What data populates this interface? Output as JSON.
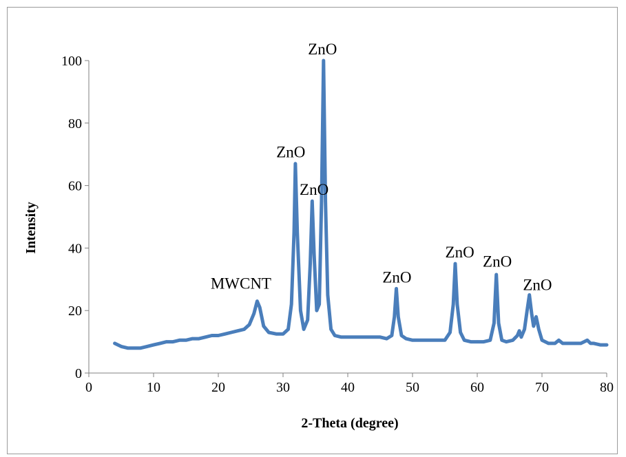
{
  "chart_data": {
    "type": "line",
    "title": "",
    "xlabel": "2-Theta (degree)",
    "ylabel": "Intensity",
    "xlim": [
      0,
      80
    ],
    "ylim": [
      0,
      100
    ],
    "xticks": [
      "0",
      "10",
      "20",
      "30",
      "40",
      "50",
      "60",
      "70",
      "80"
    ],
    "yticks": [
      "0",
      "20",
      "40",
      "60",
      "80",
      "100"
    ],
    "grid": false,
    "legend": "none",
    "series": [
      {
        "color": "#4a7ebb",
        "x": [
          4,
          5,
          6,
          7,
          8,
          9,
          10,
          11,
          12,
          13,
          14,
          15,
          16,
          17,
          18,
          19,
          20,
          21,
          22,
          23,
          24,
          24.8,
          25.5,
          26,
          26.4,
          27,
          27.8,
          29,
          30,
          30.8,
          31.3,
          31.7,
          31.9,
          32.2,
          32.7,
          33.2,
          33.8,
          34.2,
          34.5,
          34.8,
          35.2,
          35.6,
          35.95,
          36.25,
          36.55,
          36.9,
          37.4,
          38,
          39,
          40,
          41,
          42,
          43,
          44,
          45,
          46,
          46.8,
          47.2,
          47.5,
          47.8,
          48.3,
          49,
          50,
          51,
          52,
          53,
          54,
          55,
          55.8,
          56.3,
          56.6,
          56.9,
          57.4,
          58,
          59,
          60,
          61,
          62,
          62.6,
          62.95,
          63.3,
          63.8,
          64.5,
          65.5,
          66.2,
          66.5,
          66.8,
          67.3,
          67.7,
          68.05,
          68.4,
          68.7,
          69.1,
          69.5,
          70,
          71,
          72,
          72.6,
          73.2,
          74,
          75,
          76,
          76.5,
          77,
          77.5,
          78,
          79,
          80
        ],
        "y": [
          9.5,
          8.5,
          8,
          8,
          8,
          8.5,
          9,
          9.5,
          10,
          10,
          10.5,
          10.5,
          11,
          11,
          11.5,
          12,
          12,
          12.5,
          13,
          13.5,
          14,
          15.5,
          19,
          23,
          21,
          15,
          13,
          12.5,
          12.5,
          14,
          22,
          45,
          67,
          45,
          20,
          14,
          17,
          35,
          55,
          38,
          20,
          22,
          55,
          100,
          55,
          25,
          14,
          12,
          11.5,
          11.5,
          11.5,
          11.5,
          11.5,
          11.5,
          11.5,
          11,
          12,
          18,
          27,
          18,
          12,
          11,
          10.5,
          10.5,
          10.5,
          10.5,
          10.5,
          10.5,
          13,
          22,
          35,
          22,
          13,
          10.5,
          10,
          10,
          10,
          10.5,
          16,
          31.5,
          16,
          10.5,
          10,
          10.5,
          12,
          13.5,
          11.5,
          14,
          20,
          25,
          19,
          15,
          18,
          14,
          10.5,
          9.5,
          9.5,
          10.5,
          9.5,
          9.5,
          9.5,
          9.5,
          10,
          10.5,
          9.5,
          9.5,
          9,
          9
        ]
      }
    ],
    "annotations": [
      {
        "text": "MWCNT",
        "x": 23.5,
        "y": 27
      },
      {
        "text": "ZnO",
        "x": 31.2,
        "y": 69
      },
      {
        "text": "ZnO",
        "x": 34.8,
        "y": 57
      },
      {
        "text": "ZnO",
        "x": 36.1,
        "y": 102
      },
      {
        "text": "ZnO",
        "x": 47.6,
        "y": 29
      },
      {
        "text": "ZnO",
        "x": 57.3,
        "y": 37
      },
      {
        "text": "ZnO",
        "x": 63.1,
        "y": 34
      },
      {
        "text": "ZnO",
        "x": 69.3,
        "y": 26.5
      }
    ]
  }
}
